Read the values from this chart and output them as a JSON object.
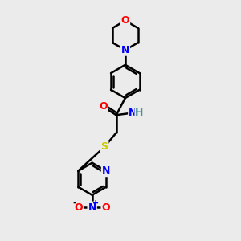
{
  "bg_color": "#ebebeb",
  "bond_color": "#000000",
  "bond_width": 1.8,
  "atom_colors": {
    "O": "#ff0000",
    "N": "#0000ff",
    "S": "#cccc00",
    "C": "#000000",
    "H": "#4a9090"
  },
  "font_size": 9,
  "fig_width": 3.0,
  "fig_height": 3.0,
  "dpi": 100
}
